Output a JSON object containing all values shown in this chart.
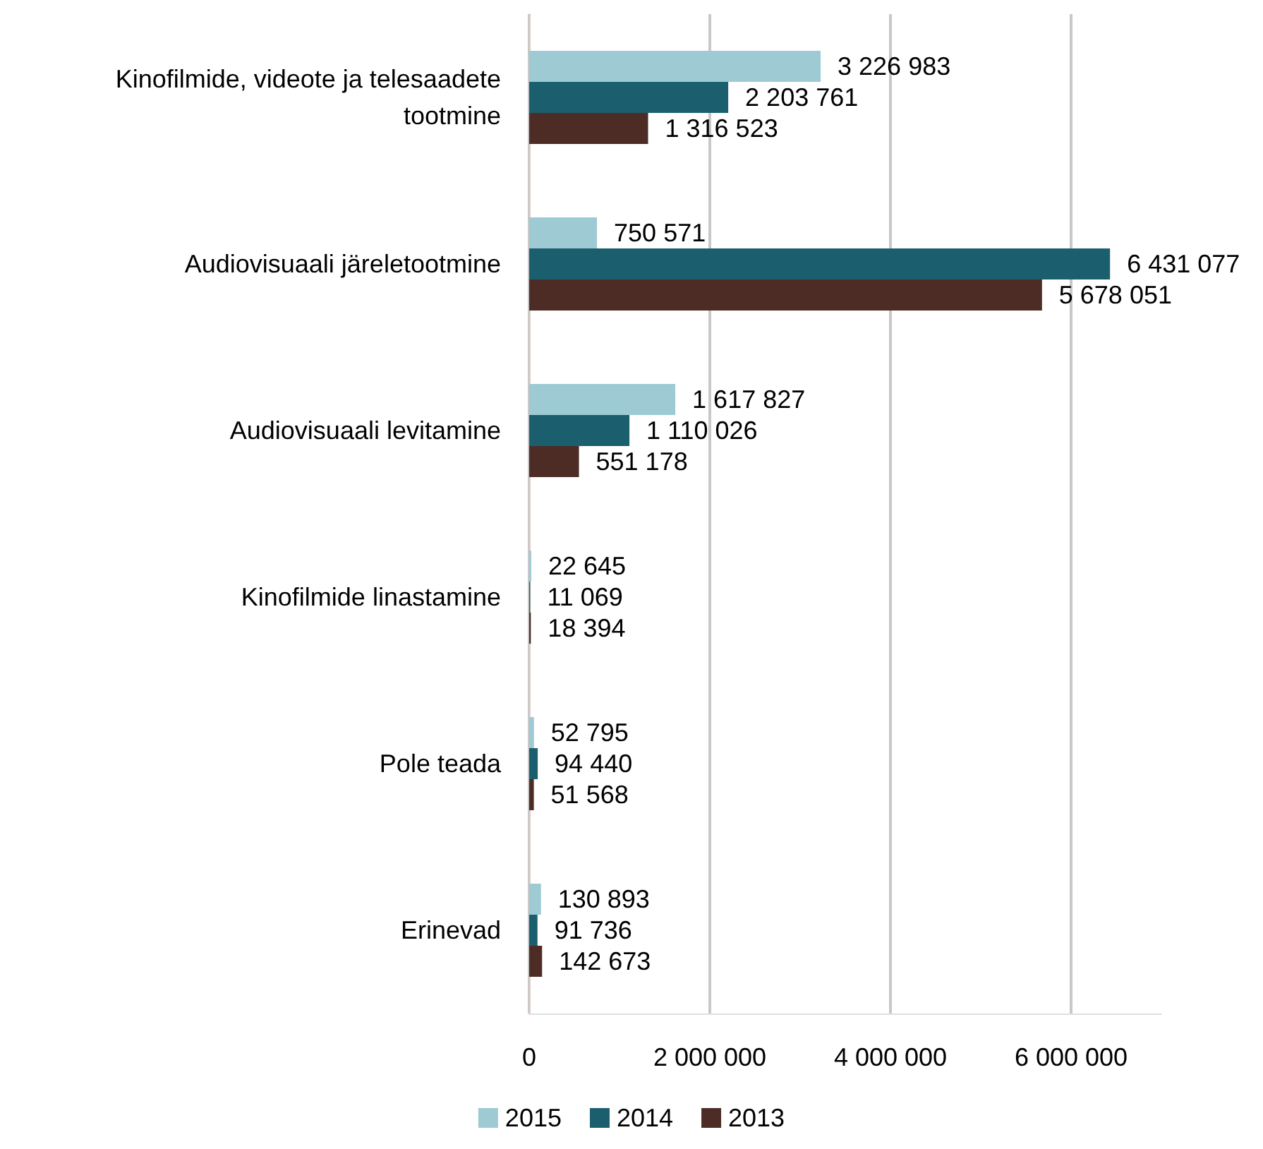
{
  "chart_data": {
    "type": "bar",
    "orientation": "horizontal",
    "categories": [
      "Kinofilmide, videote ja telesaadete\ntootmine",
      "Audiovisuaali järeletootmine",
      "Audiovisuaali levitamine",
      "Kinofilmide linastamine",
      "Pole teada",
      "Erinevad"
    ],
    "series": [
      {
        "name": "2015",
        "color": "#9ecbd3",
        "values": [
          3226983,
          750571,
          1617827,
          22645,
          52795,
          130893
        ]
      },
      {
        "name": "2014",
        "color": "#1b5f6e",
        "values": [
          2203761,
          6431077,
          1110026,
          11069,
          94440,
          91736
        ]
      },
      {
        "name": "2013",
        "color": "#4e2c26",
        "values": [
          1316523,
          5678051,
          551178,
          18394,
          51568,
          142673
        ]
      }
    ],
    "xlim": [
      0,
      7000000
    ],
    "xticks": [
      0,
      {
        "value": 2000000,
        "label": "2 000 000"
      },
      {
        "value": 4000000,
        "label": "4 000 000"
      },
      {
        "value": 6000000,
        "label": "6 000 000"
      }
    ],
    "grid": "x",
    "legend": "bottom",
    "data_labels": true
  }
}
